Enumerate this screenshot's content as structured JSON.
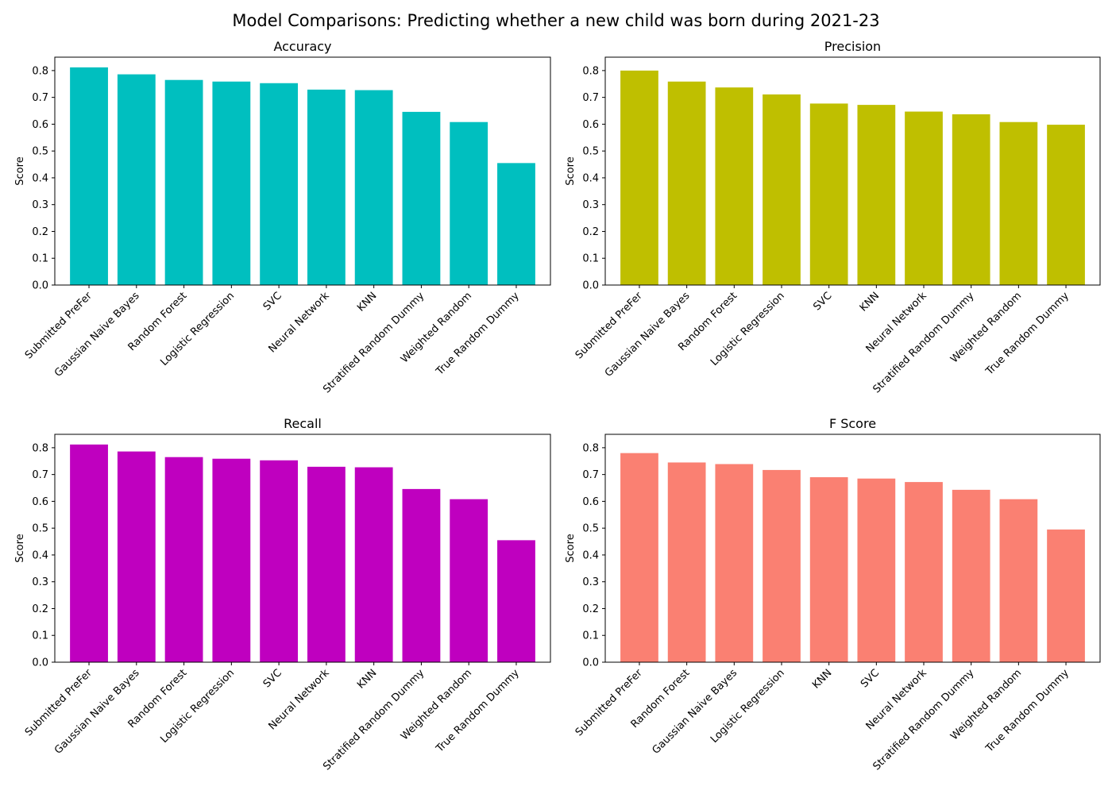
{
  "figure": {
    "title": "Model Comparisons: Predicting whether a new child was born during 2021-23"
  },
  "chart_data": [
    {
      "type": "bar",
      "title": "Accuracy",
      "xlabel": "",
      "ylabel": "Score",
      "ylim": [
        0,
        0.85
      ],
      "yticks": [
        "0.0",
        "0.1",
        "0.2",
        "0.3",
        "0.4",
        "0.5",
        "0.6",
        "0.7",
        "0.8"
      ],
      "color": "#00bfbf",
      "grid": false,
      "categories": [
        "Submitted PreFer",
        "Gaussian Naive Bayes",
        "Random Forest",
        "Logistic Regression",
        "SVC",
        "Neural Network",
        "KNN",
        "Stratified Random Dummy",
        "Weighted Random",
        "True Random Dummy"
      ],
      "values": [
        0.812,
        0.786,
        0.765,
        0.759,
        0.753,
        0.729,
        0.727,
        0.646,
        0.608,
        0.455
      ]
    },
    {
      "type": "bar",
      "title": "Precision",
      "xlabel": "",
      "ylabel": "Score",
      "ylim": [
        0,
        0.85
      ],
      "yticks": [
        "0.0",
        "0.1",
        "0.2",
        "0.3",
        "0.4",
        "0.5",
        "0.6",
        "0.7",
        "0.8"
      ],
      "color": "#bfbf00",
      "grid": false,
      "categories": [
        "Submitted PreFer",
        "Gaussian Naive Bayes",
        "Random Forest",
        "Logistic Regression",
        "SVC",
        "KNN",
        "Neural Network",
        "Stratified Random Dummy",
        "Weighted Random",
        "True Random Dummy"
      ],
      "values": [
        0.8,
        0.759,
        0.737,
        0.711,
        0.677,
        0.672,
        0.647,
        0.637,
        0.608,
        0.598
      ]
    },
    {
      "type": "bar",
      "title": "Recall",
      "xlabel": "",
      "ylabel": "Score",
      "ylim": [
        0,
        0.85
      ],
      "yticks": [
        "0.0",
        "0.1",
        "0.2",
        "0.3",
        "0.4",
        "0.5",
        "0.6",
        "0.7",
        "0.8"
      ],
      "color": "#bf00bf",
      "grid": false,
      "categories": [
        "Submitted PreFer",
        "Gaussian Naive Bayes",
        "Random Forest",
        "Logistic Regression",
        "SVC",
        "Neural Network",
        "KNN",
        "Stratified Random Dummy",
        "Weighted Random",
        "True Random Dummy"
      ],
      "values": [
        0.812,
        0.786,
        0.765,
        0.759,
        0.753,
        0.729,
        0.727,
        0.646,
        0.608,
        0.455
      ]
    },
    {
      "type": "bar",
      "title": "F Score",
      "xlabel": "",
      "ylabel": "Score",
      "ylim": [
        0,
        0.85
      ],
      "yticks": [
        "0.0",
        "0.1",
        "0.2",
        "0.3",
        "0.4",
        "0.5",
        "0.6",
        "0.7",
        "0.8"
      ],
      "color": "#fa8072",
      "grid": false,
      "categories": [
        "Submitted PreFer",
        "Random Forest",
        "Gaussian Naive Bayes",
        "Logistic Regression",
        "KNN",
        "SVC",
        "Neural Network",
        "Stratified Random Dummy",
        "Weighted Random",
        "True Random Dummy"
      ],
      "values": [
        0.78,
        0.745,
        0.739,
        0.717,
        0.69,
        0.685,
        0.672,
        0.643,
        0.608,
        0.495
      ]
    }
  ]
}
